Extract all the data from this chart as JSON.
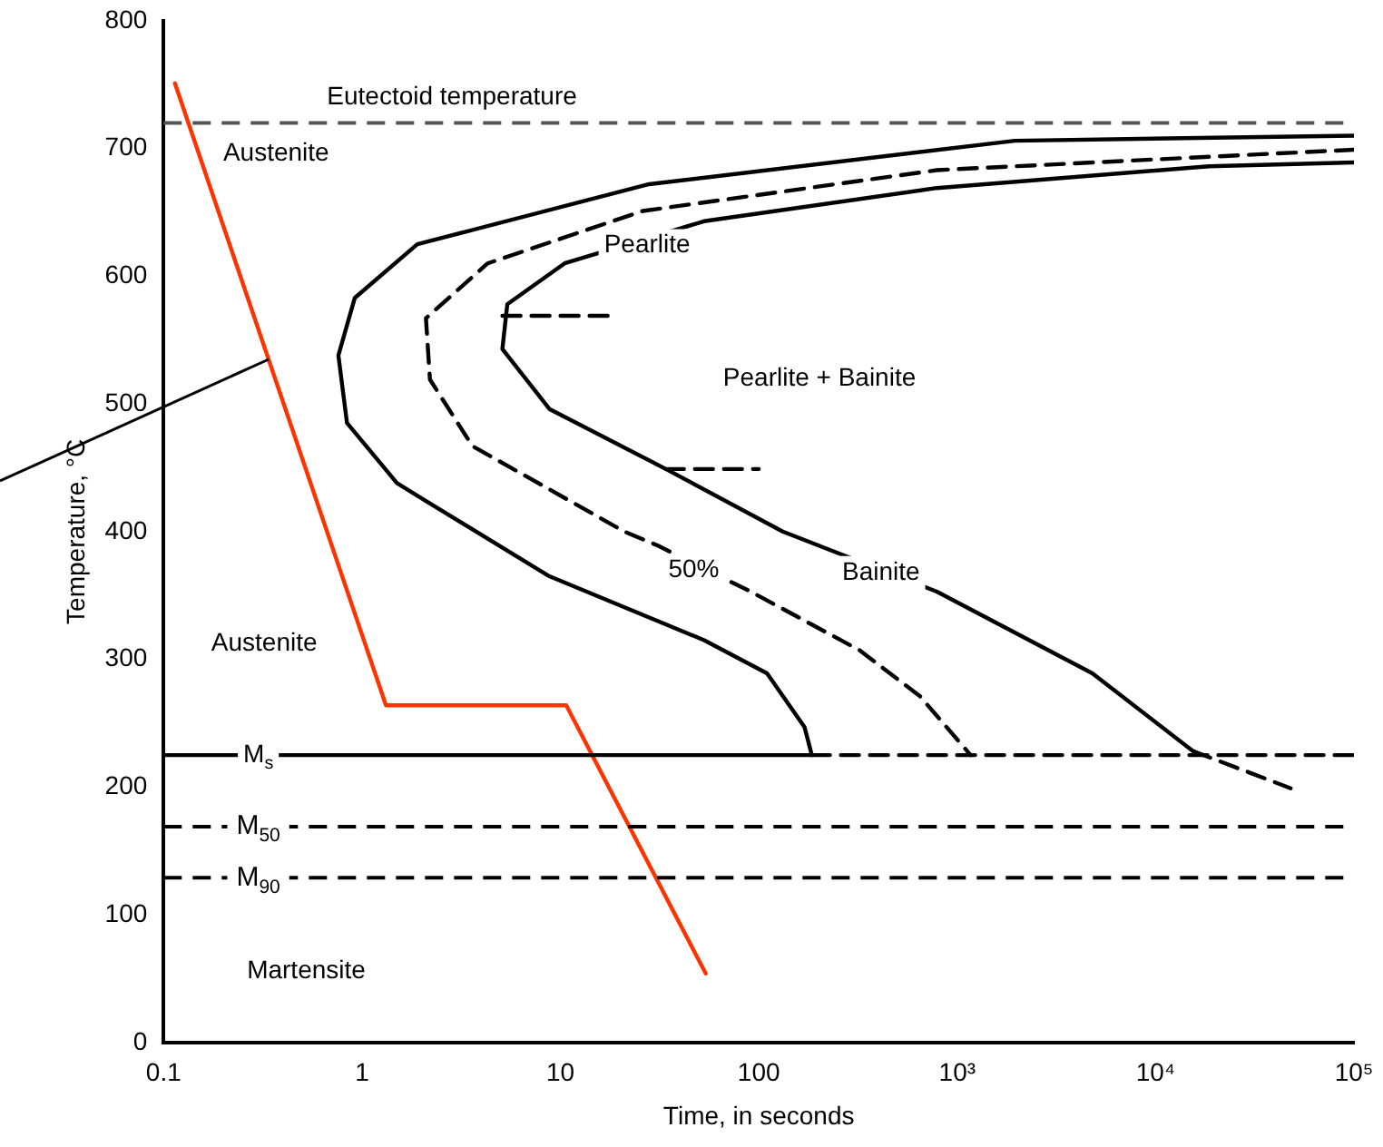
{
  "chart_data": {
    "type": "line",
    "xlabel": "Time, in seconds",
    "ylabel": "Temperature, °C",
    "log": "x",
    "grid": false,
    "legend": false,
    "marker": "none",
    "xlim": [
      0.1,
      100000
    ],
    "xticks": [
      {
        "value": 0.1,
        "label": "0.1"
      },
      1,
      10,
      100,
      {
        "value": 1000,
        "label": "10³"
      },
      {
        "value": 10000,
        "label": "10⁴"
      },
      {
        "value": 100000,
        "label": "10⁵"
      }
    ],
    "ylim": [
      0,
      800
    ],
    "yticks": [
      0,
      100,
      200,
      300,
      400,
      500,
      600,
      700,
      800
    ],
    "series": [
      {
        "color": "#000000",
        "line_style": "solid",
        "x": [
          100000,
          1950,
          28,
          1.9,
          0.92,
          0.76,
          0.84,
          1.5,
          2.1,
          8.8,
          53,
          110,
          170,
          185
        ],
        "values": [
          710,
          706,
          672,
          625,
          583,
          538,
          485,
          438,
          424,
          365,
          315,
          289,
          247,
          225
        ]
      },
      {
        "color": "#000000",
        "line_style": "dashed",
        "x": [
          100000,
          790,
          26,
          4.3,
          2.1,
          2.2,
          3.6,
          21,
          31,
          91,
          323,
          650,
          1170
        ],
        "values": [
          699,
          683,
          651,
          610,
          567,
          519,
          467,
          400,
          389,
          353,
          307,
          271,
          225
        ]
      },
      {
        "color": "#000000",
        "line_style": "solid",
        "x": [
          100000,
          18600,
          790,
          53,
          10.5,
          5.4,
          5.1,
          8.8,
          34,
          132,
          790,
          4800,
          15500
        ],
        "values": [
          689,
          686,
          669,
          643,
          610,
          578,
          543,
          496,
          449,
          400,
          353,
          289,
          228
        ]
      },
      {
        "color": "#000000",
        "line_style": "dashed",
        "x": [
          15500,
          48000
        ],
        "values": [
          228,
          199
        ]
      },
      {
        "color": "#000000",
        "line_style": "dashed",
        "x": [
          5.1,
          18
        ],
        "values": [
          569,
          569
        ]
      },
      {
        "color": "#000000",
        "line_style": "dashed",
        "x": [
          34,
          100
        ],
        "values": [
          449,
          449
        ]
      },
      {
        "color": "#000000",
        "line_style": "solid",
        "x": [
          0.1,
          185
        ],
        "values": [
          225,
          225
        ]
      },
      {
        "color": "#000000",
        "line_style": "dashed",
        "x": [
          185,
          100000
        ],
        "values": [
          225,
          225
        ]
      },
      {
        "color": "#ff3300",
        "line_style": "solid",
        "x": [
          0.114,
          1.32,
          10.7,
          54
        ],
        "values": [
          751,
          264,
          264,
          54
        ]
      }
    ],
    "ref_lines": [
      {
        "axis": "y",
        "value": 720,
        "label": "Eutectoid temperature",
        "line_style": "dashed",
        "color": "#555555"
      },
      {
        "axis": "y",
        "value": 169,
        "label": "M$_{50}$",
        "line_style": "dashed",
        "color": "#000000"
      },
      {
        "axis": "y",
        "value": 129,
        "label": "M$_{90}$",
        "line_style": "dashed",
        "color": "#000000"
      }
    ],
    "annotations": [
      "Austenite",
      "Pearlite",
      "Pearlite + Bainite",
      {
        "text": "50%",
        "x": 47,
        "y": 370
      },
      "Bainite",
      "Austenite",
      {
        "text": "M$_{s}$",
        "x": 0.3,
        "y": 225
      },
      "Martensite"
    ]
  }
}
